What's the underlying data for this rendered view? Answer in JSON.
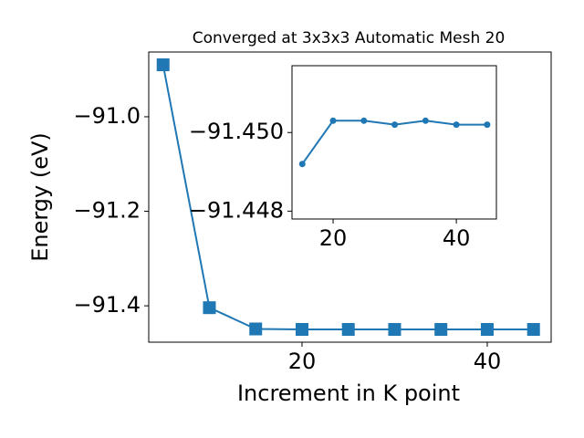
{
  "chart_data": [
    {
      "type": "line",
      "title": "Converged at 3x3x3 Automatic Mesh 20",
      "x_label": "Increment in K point",
      "y_label": "Energy (eV)",
      "x": [
        5,
        10,
        15,
        20,
        25,
        30,
        35,
        40,
        45
      ],
      "series": [
        {
          "color": "#1f77b4",
          "marker": "square",
          "values": [
            -90.89,
            -91.404,
            -91.449,
            -91.45,
            -91.45,
            -91.45,
            -91.45,
            -91.45,
            -91.45
          ]
        }
      ],
      "xlim": [
        3.45,
        46.9
      ],
      "xticks": [
        20,
        40
      ],
      "ylim": [
        -91.477,
        -90.863
      ],
      "yticks": [
        {
          "value": -91.0,
          "label": "−91.0"
        },
        {
          "value": -91.2,
          "label": "−91.2"
        },
        {
          "value": -91.4,
          "label": "−91.4"
        }
      ]
    },
    {
      "type": "line",
      "x": [
        15,
        20,
        25,
        30,
        35,
        40,
        45
      ],
      "series": [
        {
          "color": "#1f77b4",
          "marker": "circle",
          "values": [
            -91.4492,
            -91.4503,
            -91.4503,
            -91.4502,
            -91.4503,
            -91.4502,
            -91.4502
          ]
        }
      ],
      "xlim": [
        13.33,
        46.5
      ],
      "xticks": [
        20,
        40
      ],
      "ylim": [
        -91.4478,
        -91.4517
      ],
      "yticks": [
        {
          "value": -91.45,
          "label": "−91.450"
        },
        {
          "value": -91.448,
          "label": "−91.448"
        }
      ]
    }
  ]
}
